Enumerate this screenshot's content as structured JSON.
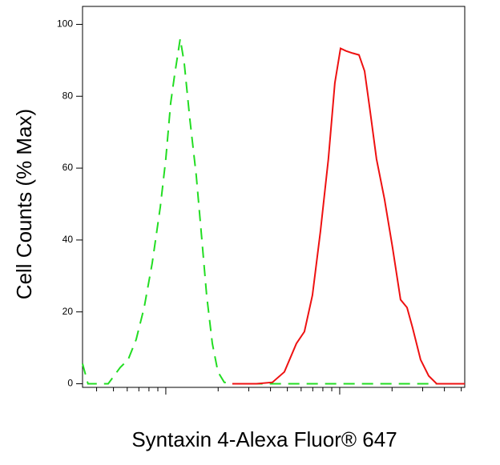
{
  "chart_data": {
    "type": "line",
    "x_label": "Syntaxin 4-Alexa Fluor® 647",
    "y_label": "Cell Counts (% Max)",
    "x_log": true,
    "xlim": [
      332,
      52360
    ],
    "ylim": [
      -1,
      105
    ],
    "xticks": [
      400,
      500,
      600,
      700,
      800,
      900,
      1000,
      2000,
      3000,
      4000,
      5000,
      6000,
      7000,
      8000,
      9000,
      10000,
      20000,
      30000,
      40000,
      50000
    ],
    "yticks": [
      0,
      20,
      40,
      60,
      80,
      100
    ],
    "series": [
      {
        "color": "#22dd22",
        "dash": true,
        "x": [
          332,
          357,
          466,
          546,
          607,
          675,
          751,
          835,
          929,
          1000,
          1066,
          1124,
          1210,
          1276,
          1374,
          1496,
          1611,
          1718,
          1851,
          1995,
          2168,
          2412,
          4560,
          13180,
          52360
        ],
        "values": [
          5.6,
          0,
          0,
          4.5,
          6.7,
          12.3,
          21.2,
          33.5,
          49.1,
          62.5,
          78.1,
          85.9,
          96,
          89.3,
          73.7,
          58.0,
          40.2,
          24.6,
          11.2,
          3.3,
          0.4,
          0,
          0,
          0,
          0
        ]
      },
      {
        "color": "#ee1111",
        "dash": false,
        "x": [
          2412,
          3318,
          4102,
          4808,
          5637,
          6266,
          6966,
          7745,
          8610,
          9378,
          10110,
          10880,
          11850,
          12900,
          13900,
          14960,
          16290,
          18110,
          20140,
          22390,
          24380,
          26250,
          29180,
          32480,
          36120,
          52360
        ],
        "values": [
          0,
          0,
          0.4,
          3.3,
          11.2,
          14.5,
          24.6,
          42.4,
          62.5,
          83.7,
          93.3,
          92.6,
          92,
          91.5,
          87,
          75.9,
          62.5,
          51.3,
          37.9,
          23.4,
          21.2,
          15.6,
          6.7,
          2.2,
          0,
          0
        ]
      }
    ]
  }
}
